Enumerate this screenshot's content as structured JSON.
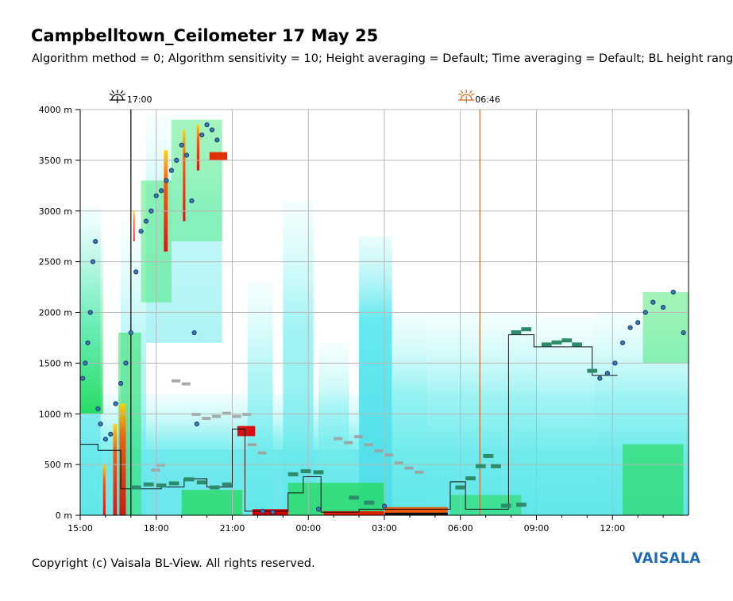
{
  "header": {
    "title": "Campbelltown_Ceilometer 17 May 25",
    "subtitle": "Algorithm method = 0; Algorithm sensitivity = 10; Height averaging = Default; Time averaging = Default; BL height rang"
  },
  "footer": {
    "copyright": "Copyright (c) Vaisala BL-View. All rights reserved.",
    "brand": "VAISALA"
  },
  "markers": {
    "sunset": {
      "label": "17:00",
      "icon": "sunset-icon",
      "color": "#000000"
    },
    "sunrise": {
      "label": "06:46",
      "icon": "sunrise-icon",
      "color": "#d2691e"
    }
  },
  "chart_data": {
    "type": "heatmap",
    "title": "Campbelltown_Ceilometer 17 May 25",
    "x_ticks": [
      "15:00",
      "18:00",
      "21:00",
      "00:00",
      "03:00",
      "06:00",
      "09:00",
      "12:00"
    ],
    "x_range_hours": [
      15,
      39
    ],
    "y_ticks": [
      "0 m",
      "500 m",
      "1000 m",
      "1500 m",
      "2000 m",
      "2500 m",
      "3000 m",
      "3500 m",
      "4000 m"
    ],
    "y_range_m": [
      0,
      4000
    ],
    "grid": true,
    "colors": {
      "backscatter_low": "#8ff0f0",
      "backscatter_mid": "#10e030",
      "backscatter_high": "#ff2a00",
      "cloud_base": "#1a3a5c",
      "bl_layer": "#2e8b6a",
      "residual_layer": "#a0a0a0"
    },
    "vertical_lines": [
      {
        "time": "17:00",
        "color": "#000000"
      },
      {
        "time": "06:46",
        "color": "#d2691e"
      }
    ],
    "series": [
      {
        "type": "step",
        "points": [
          [
            15.0,
            700
          ],
          [
            15.7,
            700
          ],
          [
            15.7,
            640
          ],
          [
            16.6,
            640
          ],
          [
            16.6,
            260
          ],
          [
            18.2,
            260
          ],
          [
            18.2,
            280
          ],
          [
            19.1,
            280
          ],
          [
            19.1,
            360
          ],
          [
            20.0,
            360
          ],
          [
            20.0,
            280
          ],
          [
            21.0,
            280
          ],
          [
            21.0,
            850
          ],
          [
            21.5,
            850
          ],
          [
            21.5,
            40
          ],
          [
            23.2,
            40
          ],
          [
            23.2,
            220
          ],
          [
            23.8,
            220
          ],
          [
            23.8,
            380
          ],
          [
            24.5,
            380
          ],
          [
            24.5,
            30
          ],
          [
            26.0,
            30
          ],
          [
            26.0,
            60
          ],
          [
            29.6,
            60
          ],
          [
            29.6,
            330
          ],
          [
            30.2,
            330
          ],
          [
            30.2,
            60
          ],
          [
            31.9,
            60
          ],
          [
            31.9,
            1780
          ],
          [
            32.9,
            1780
          ],
          [
            32.9,
            1660
          ],
          [
            35.2,
            1660
          ],
          [
            35.2,
            1380
          ],
          [
            36.2,
            1380
          ]
        ]
      },
      {
        "name": "cloud_base",
        "points": [
          [
            15.1,
            1350
          ],
          [
            15.2,
            1500
          ],
          [
            15.3,
            1700
          ],
          [
            15.4,
            2000
          ],
          [
            15.5,
            2500
          ],
          [
            15.6,
            2700
          ],
          [
            15.7,
            1050
          ],
          [
            15.8,
            900
          ],
          [
            16.0,
            750
          ],
          [
            16.2,
            800
          ],
          [
            16.4,
            1100
          ],
          [
            16.6,
            1300
          ],
          [
            16.8,
            1500
          ],
          [
            17.0,
            1800
          ],
          [
            17.2,
            2400
          ],
          [
            17.4,
            2800
          ],
          [
            17.6,
            2900
          ],
          [
            17.8,
            3000
          ],
          [
            18.0,
            3150
          ],
          [
            18.2,
            3200
          ],
          [
            18.4,
            3300
          ],
          [
            18.6,
            3400
          ],
          [
            18.8,
            3500
          ],
          [
            19.0,
            3650
          ],
          [
            19.2,
            3550
          ],
          [
            19.4,
            3100
          ],
          [
            19.5,
            1800
          ],
          [
            19.6,
            900
          ],
          [
            19.8,
            3750
          ],
          [
            20.0,
            3850
          ],
          [
            20.2,
            3800
          ],
          [
            20.4,
            3700
          ],
          [
            22.2,
            40
          ],
          [
            22.6,
            30
          ],
          [
            24.4,
            60
          ],
          [
            27.0,
            90
          ],
          [
            35.5,
            1350
          ],
          [
            35.8,
            1400
          ],
          [
            36.1,
            1500
          ],
          [
            36.4,
            1700
          ],
          [
            36.7,
            1850
          ],
          [
            37.0,
            1900
          ],
          [
            37.3,
            2000
          ],
          [
            37.6,
            2100
          ],
          [
            38.0,
            2050
          ],
          [
            38.4,
            2200
          ],
          [
            38.8,
            1800
          ]
        ]
      }
    ]
  }
}
